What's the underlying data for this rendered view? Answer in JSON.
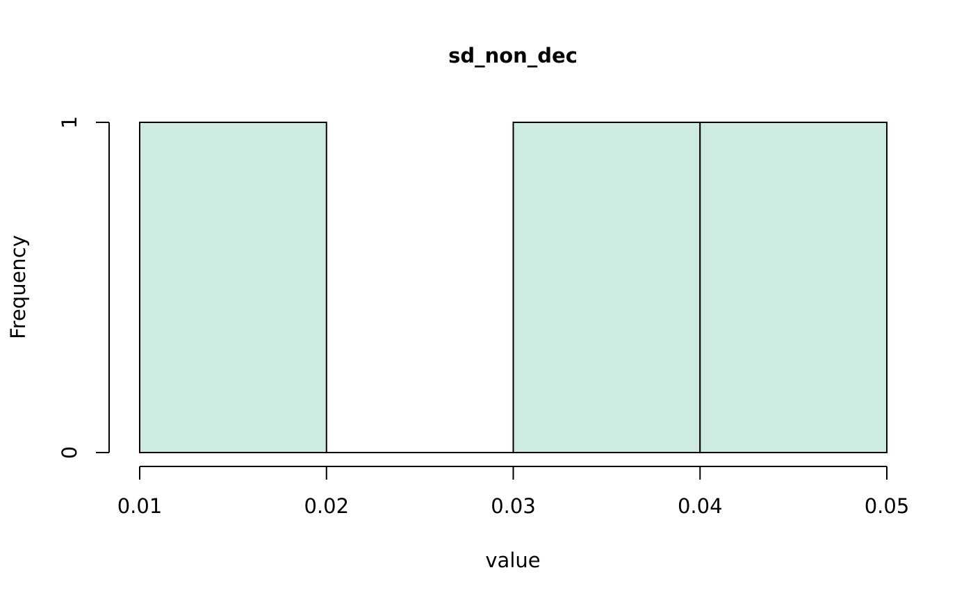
{
  "chart_data": {
    "type": "bar",
    "title": "sd_non_dec",
    "xlabel": "value",
    "ylabel": "Frequency",
    "bins": [
      {
        "start": 0.01,
        "end": 0.02,
        "count": 1
      },
      {
        "start": 0.02,
        "end": 0.03,
        "count": 0
      },
      {
        "start": 0.03,
        "end": 0.04,
        "count": 1
      },
      {
        "start": 0.04,
        "end": 0.05,
        "count": 1
      }
    ],
    "x_ticks": [
      "0.01",
      "0.02",
      "0.03",
      "0.04",
      "0.05"
    ],
    "y_ticks": [
      "0",
      "1"
    ],
    "xlim": [
      0.01,
      0.05
    ],
    "ylim": [
      0,
      1
    ],
    "grid": false,
    "bar_color": "#cdebe3",
    "edge_color": "#000000"
  }
}
